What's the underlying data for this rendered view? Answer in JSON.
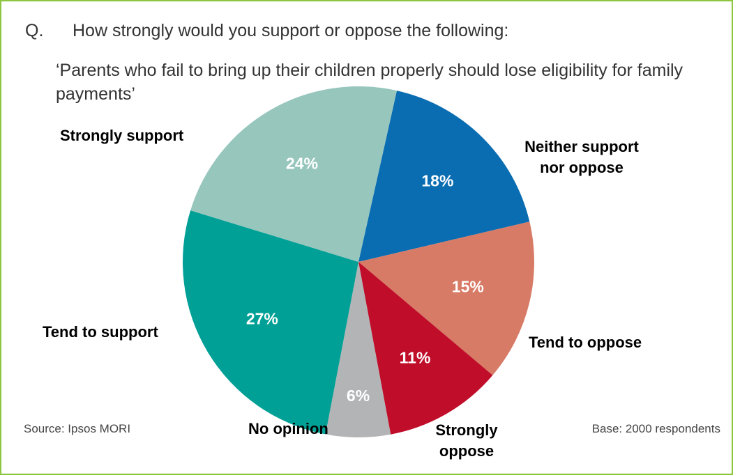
{
  "question": {
    "marker": "Q.",
    "line1": "How strongly would you support or oppose the following:",
    "line2": "‘Parents who fail to bring up their children properly should lose eligibility for family payments’"
  },
  "chart_data": {
    "type": "pie",
    "title": "",
    "slices": [
      {
        "label": "Neither support nor oppose",
        "value": 18,
        "display": "18%",
        "color": "#0a6db1"
      },
      {
        "label": "Tend to oppose",
        "value": 15,
        "display": "15%",
        "color": "#d87b66"
      },
      {
        "label": "Strongly oppose",
        "value": 11,
        "display": "11%",
        "color": "#c00d2a"
      },
      {
        "label": "No opinion",
        "value": 6,
        "display": "6%",
        "color": "#b2b4b6"
      },
      {
        "label": "Tend to support",
        "value": 27,
        "display": "27%",
        "color": "#00a096"
      },
      {
        "label": "Strongly support",
        "value": 24,
        "display": "24%",
        "color": "#97c6bd"
      }
    ]
  },
  "labels": {
    "neither_l1": "Neither support",
    "neither_l2": "nor oppose",
    "tend_oppose": "Tend to oppose",
    "strongly_oppose_l1": "Strongly",
    "strongly_oppose_l2": "oppose",
    "no_opinion": "No opinion",
    "tend_support": "Tend to support",
    "strongly_support": "Strongly support"
  },
  "footer": {
    "source": "Source: Ipsos MORI",
    "base": "Base: 2000 respondents"
  }
}
